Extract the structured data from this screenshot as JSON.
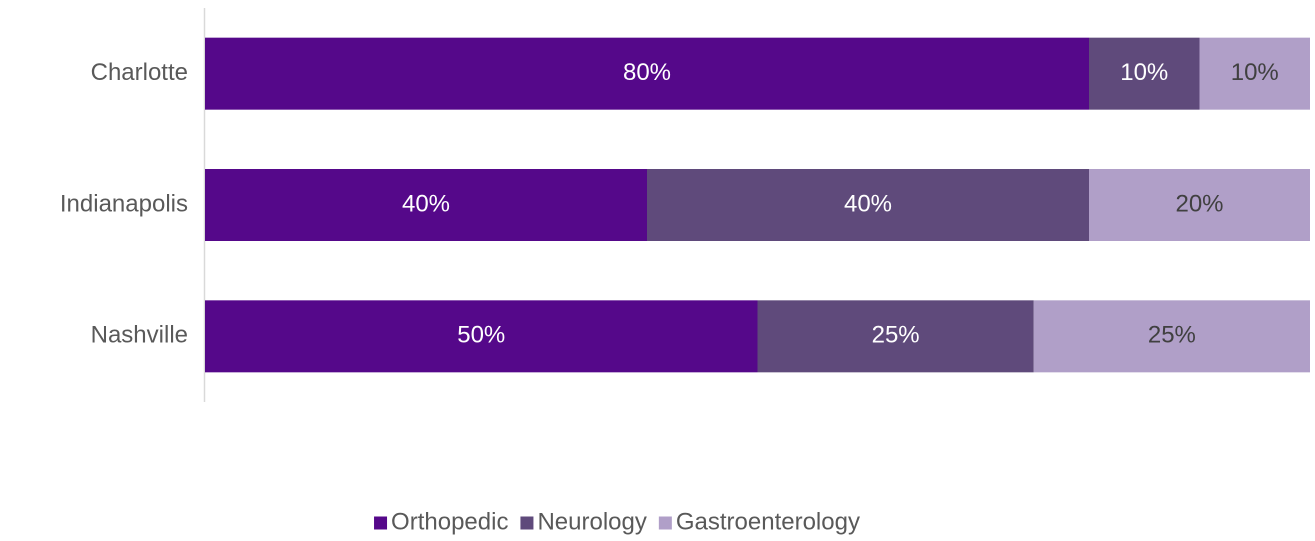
{
  "chart_data": {
    "type": "stacked_barh",
    "categories": [
      "Charlotte",
      "Indianapolis",
      "Nashville"
    ],
    "series": [
      {
        "name": "Orthopedic",
        "color": "#55088a",
        "label_color": "#ffffff",
        "values": [
          80,
          40,
          50
        ],
        "value_labels": [
          "80%",
          "40%",
          "50%"
        ]
      },
      {
        "name": "Neurology",
        "color": "#5f4a7b",
        "label_color": "#ffffff",
        "values": [
          10,
          40,
          25
        ],
        "value_labels": [
          "10%",
          "40%",
          "25%"
        ]
      },
      {
        "name": "Gastroenterology",
        "color": "#b09fc8",
        "label_color": "#404040",
        "values": [
          10,
          20,
          25
        ],
        "value_labels": [
          "10%",
          "20%",
          "25%"
        ]
      }
    ],
    "xlim": [
      0,
      100
    ],
    "legend": "bottom"
  }
}
